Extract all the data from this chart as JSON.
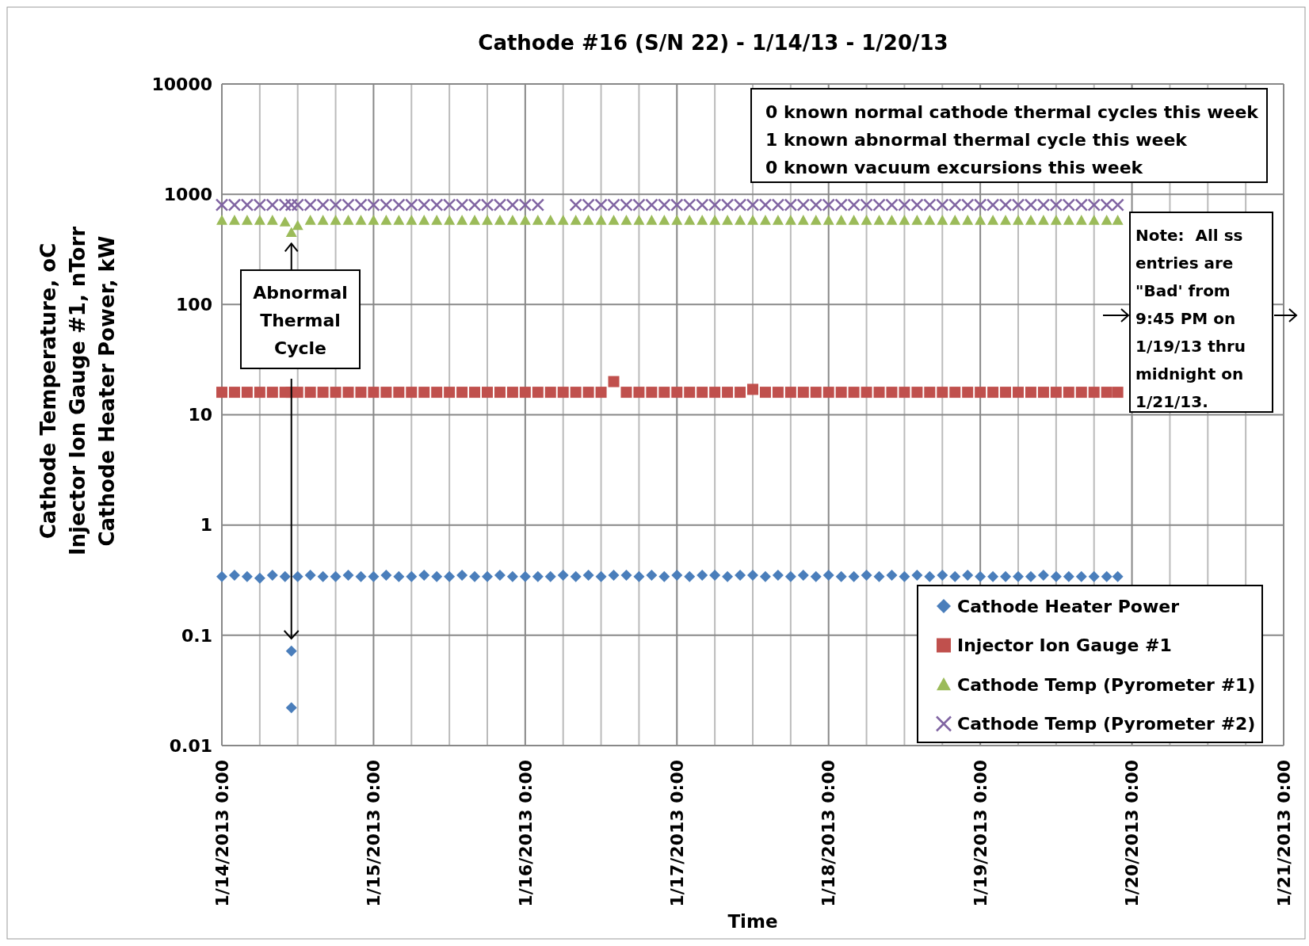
{
  "chart_data": {
    "type": "scatter",
    "title": "Cathode #16 (S/N 22) - 1/14/13 - 1/20/13",
    "xlabel": "Time",
    "ylabel": "Cathode Temperature, oC\nInjector Ion Gauge #1, nTorr\nCathode Heater Power, kW",
    "x": [
      "2013-01-14T00:00",
      "2013-01-14T02:00",
      "2013-01-14T04:00",
      "2013-01-14T06:00",
      "2013-01-14T08:00",
      "2013-01-14T10:00",
      "2013-01-14T11:00",
      "2013-01-14T11:00",
      "2013-01-14T12:00",
      "2013-01-14T14:00",
      "2013-01-14T16:00",
      "2013-01-14T18:00",
      "2013-01-14T20:00",
      "2013-01-14T22:00",
      "2013-01-15T00:00",
      "2013-01-15T02:00",
      "2013-01-15T04:00",
      "2013-01-15T06:00",
      "2013-01-15T08:00",
      "2013-01-15T10:00",
      "2013-01-15T12:00",
      "2013-01-15T14:00",
      "2013-01-15T16:00",
      "2013-01-15T18:00",
      "2013-01-15T20:00",
      "2013-01-15T22:00",
      "2013-01-16T00:00",
      "2013-01-16T02:00",
      "2013-01-16T04:00",
      "2013-01-16T06:00",
      "2013-01-16T08:00",
      "2013-01-16T10:00",
      "2013-01-16T12:00",
      "2013-01-16T14:00",
      "2013-01-16T16:00",
      "2013-01-16T18:00",
      "2013-01-16T20:00",
      "2013-01-16T22:00",
      "2013-01-17T00:00",
      "2013-01-17T02:00",
      "2013-01-17T04:00",
      "2013-01-17T06:00",
      "2013-01-17T08:00",
      "2013-01-17T10:00",
      "2013-01-17T12:00",
      "2013-01-17T14:00",
      "2013-01-17T16:00",
      "2013-01-17T18:00",
      "2013-01-17T20:00",
      "2013-01-17T22:00",
      "2013-01-18T00:00",
      "2013-01-18T02:00",
      "2013-01-18T04:00",
      "2013-01-18T06:00",
      "2013-01-18T08:00",
      "2013-01-18T10:00",
      "2013-01-18T12:00",
      "2013-01-18T14:00",
      "2013-01-18T16:00",
      "2013-01-18T18:00",
      "2013-01-18T20:00",
      "2013-01-18T22:00",
      "2013-01-19T00:00",
      "2013-01-19T02:00",
      "2013-01-19T04:00",
      "2013-01-19T06:00",
      "2013-01-19T08:00",
      "2013-01-19T10:00",
      "2013-01-19T12:00",
      "2013-01-19T14:00",
      "2013-01-19T16:00",
      "2013-01-19T18:00",
      "2013-01-19T20:00",
      "2013-01-19T21:45"
    ],
    "series": [
      {
        "name": "Cathode Heater Power",
        "color": "#4a7ebb",
        "marker": "diamond",
        "values": [
          0.34,
          0.35,
          0.34,
          0.33,
          0.35,
          0.34,
          0.072,
          0.022,
          0.34,
          0.35,
          0.34,
          0.34,
          0.35,
          0.34,
          0.34,
          0.35,
          0.34,
          0.34,
          0.35,
          0.34,
          0.34,
          0.35,
          0.34,
          0.34,
          0.35,
          0.34,
          0.34,
          0.34,
          0.34,
          0.35,
          0.34,
          0.35,
          0.34,
          0.35,
          0.35,
          0.34,
          0.35,
          0.34,
          0.35,
          0.34,
          0.35,
          0.35,
          0.34,
          0.35,
          0.35,
          0.34,
          0.35,
          0.34,
          0.35,
          0.34,
          0.35,
          0.34,
          0.34,
          0.35,
          0.34,
          0.35,
          0.34,
          0.35,
          0.34,
          0.35,
          0.34,
          0.35,
          0.34,
          0.34,
          0.34,
          0.34,
          0.34,
          0.35,
          0.34,
          0.34,
          0.34,
          0.34,
          0.34,
          0.34
        ]
      },
      {
        "name": "Injector Ion Gauge #1",
        "color": "#c0504d",
        "marker": "square",
        "values": [
          16,
          16,
          16,
          16,
          16,
          16,
          16,
          null,
          16,
          16,
          16,
          16,
          16,
          16,
          16,
          16,
          16,
          16,
          16,
          16,
          16,
          16,
          16,
          16,
          16,
          16,
          16,
          16,
          16,
          16,
          16,
          16,
          16,
          20,
          16,
          16,
          16,
          16,
          16,
          16,
          16,
          16,
          16,
          16,
          17,
          16,
          16,
          16,
          16,
          16,
          16,
          16,
          16,
          16,
          16,
          16,
          16,
          16,
          16,
          16,
          16,
          16,
          16,
          16,
          16,
          16,
          16,
          16,
          16,
          16,
          16,
          16,
          16,
          16
        ]
      },
      {
        "name": "Cathode Temp (Pyrometer #1)",
        "color": "#9bbb59",
        "marker": "triangle",
        "values": [
          580,
          580,
          580,
          580,
          580,
          560,
          450,
          null,
          520,
          580,
          580,
          580,
          580,
          580,
          580,
          580,
          580,
          580,
          580,
          580,
          580,
          580,
          580,
          580,
          580,
          580,
          580,
          580,
          580,
          580,
          580,
          580,
          580,
          580,
          580,
          580,
          580,
          580,
          580,
          580,
          580,
          580,
          580,
          580,
          580,
          580,
          580,
          580,
          580,
          580,
          580,
          580,
          580,
          580,
          580,
          580,
          580,
          580,
          580,
          580,
          580,
          580,
          580,
          580,
          580,
          580,
          580,
          580,
          580,
          580,
          580,
          580,
          580,
          580
        ]
      },
      {
        "name": "Cathode Temp (Pyrometer #2)",
        "color": "#8064a2",
        "marker": "cross",
        "values": [
          800,
          800,
          800,
          800,
          800,
          800,
          800,
          null,
          800,
          800,
          800,
          800,
          800,
          800,
          800,
          800,
          800,
          800,
          800,
          800,
          800,
          800,
          800,
          800,
          800,
          800,
          800,
          800,
          null,
          null,
          800,
          800,
          800,
          800,
          800,
          800,
          800,
          800,
          800,
          800,
          800,
          800,
          800,
          800,
          800,
          800,
          800,
          800,
          800,
          800,
          800,
          800,
          800,
          800,
          800,
          800,
          800,
          800,
          800,
          800,
          800,
          800,
          800,
          800,
          800,
          800,
          800,
          800,
          800,
          800,
          800,
          800,
          800,
          800
        ]
      }
    ],
    "log": "y",
    "ylim": [
      0.01,
      10000
    ],
    "yticks": [
      0.01,
      0.1,
      1,
      10,
      100,
      1000,
      10000
    ],
    "xlim": [
      "2013-01-14T00:00",
      "2013-01-21T00:00"
    ],
    "xticks": [
      {
        "value": "2013-01-14T00:00",
        "label": "1/14/2013 0:00"
      },
      {
        "value": "2013-01-14T06:00",
        "label": null
      },
      {
        "value": "2013-01-14T12:00",
        "label": null
      },
      {
        "value": "2013-01-14T18:00",
        "label": null
      },
      {
        "value": "2013-01-15T00:00",
        "label": "1/15/2013 0:00"
      },
      {
        "value": "2013-01-15T06:00",
        "label": null
      },
      {
        "value": "2013-01-15T12:00",
        "label": null
      },
      {
        "value": "2013-01-15T18:00",
        "label": null
      },
      {
        "value": "2013-01-16T00:00",
        "label": "1/16/2013 0:00"
      },
      {
        "value": "2013-01-16T06:00",
        "label": null
      },
      {
        "value": "2013-01-16T12:00",
        "label": null
      },
      {
        "value": "2013-01-16T18:00",
        "label": null
      },
      {
        "value": "2013-01-17T00:00",
        "label": "1/17/2013 0:00"
      },
      {
        "value": "2013-01-17T06:00",
        "label": null
      },
      {
        "value": "2013-01-17T12:00",
        "label": null
      },
      {
        "value": "2013-01-17T18:00",
        "label": null
      },
      {
        "value": "2013-01-18T00:00",
        "label": "1/18/2013 0:00"
      },
      {
        "value": "2013-01-18T06:00",
        "label": null
      },
      {
        "value": "2013-01-18T12:00",
        "label": null
      },
      {
        "value": "2013-01-18T18:00",
        "label": null
      },
      {
        "value": "2013-01-19T00:00",
        "label": "1/19/2013 0:00"
      },
      {
        "value": "2013-01-19T06:00",
        "label": null
      },
      {
        "value": "2013-01-19T12:00",
        "label": null
      },
      {
        "value": "2013-01-19T18:00",
        "label": null
      },
      {
        "value": "2013-01-20T00:00",
        "label": "1/20/2013 0:00"
      },
      {
        "value": "2013-01-20T06:00",
        "label": null
      },
      {
        "value": "2013-01-20T12:00",
        "label": null
      },
      {
        "value": "2013-01-20T18:00",
        "label": null
      },
      {
        "value": "2013-01-21T00:00",
        "label": "1/21/2013 0:00"
      }
    ],
    "grid": true,
    "legend": "bottom right",
    "annotations": [
      "0 known normal cathode thermal cycles this week",
      "1 known abnormal thermal cycle this week",
      "0 known vacuum excursions this week",
      {
        "text": "Abnormal Thermal Cycle",
        "x": "2013-01-14T11:00",
        "y": 450
      },
      "Note:  All ss entries are \"Bad' from 9:45 PM on 1/19/13 thru midnight on 1/21/13."
    ]
  }
}
